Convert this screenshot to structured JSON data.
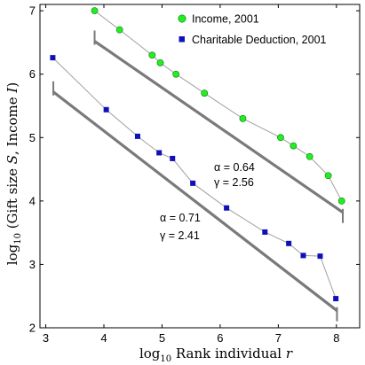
{
  "chart_data": {
    "type": "scatter",
    "xlabel_prefix": "log",
    "xlabel_sub": "10",
    "xlabel_rest": " Rank individual ",
    "xlabel_var": "r",
    "ylabel_prefix": "log",
    "ylabel_sub": "10",
    "ylabel_rest_1": " (Gift size ",
    "ylabel_var_1": "S",
    "ylabel_rest_2": ", Income ",
    "ylabel_var_2": "I",
    "ylabel_rest_3": ")",
    "xlim": [
      2.9,
      8.4
    ],
    "ylim": [
      2,
      7.1
    ],
    "x_ticks": [
      3,
      4,
      5,
      6,
      7,
      8
    ],
    "y_ticks": [
      2,
      3,
      4,
      5,
      6,
      7
    ],
    "legend_position": "top-right",
    "series": [
      {
        "name": "Income, 2001",
        "marker": "circle",
        "marker_color": "#22ee22",
        "x": [
          3.84,
          4.27,
          4.83,
          4.97,
          5.24,
          5.73,
          6.39,
          7.04,
          7.26,
          7.54,
          7.86,
          8.09
        ],
        "y": [
          7.0,
          6.7,
          6.3,
          6.18,
          6.0,
          5.7,
          5.3,
          5.0,
          4.87,
          4.7,
          4.4,
          4.0
        ]
      },
      {
        "name": "Charitable Deduction, 2001",
        "marker": "square",
        "marker_color": "#1010bb",
        "x": [
          3.12,
          4.04,
          4.58,
          4.95,
          5.18,
          5.53,
          6.11,
          6.77,
          7.18,
          7.43,
          7.72,
          7.99
        ],
        "y": [
          6.26,
          5.44,
          5.02,
          4.76,
          4.67,
          4.28,
          3.89,
          3.51,
          3.33,
          3.14,
          3.13,
          2.46
        ]
      }
    ],
    "fit_lines": [
      {
        "x": [
          3.84,
          8.11
        ],
        "y": [
          6.52,
          3.82
        ]
      },
      {
        "x": [
          3.13,
          8.01
        ],
        "y": [
          5.72,
          2.27
        ]
      }
    ],
    "annotations": [
      {
        "alpha": "α = 0.64",
        "gamma": "γ = 2.56",
        "x": 6.5,
        "y": 4.6
      },
      {
        "alpha": "α = 0.71",
        "gamma": "γ = 2.41",
        "x": 4.7,
        "y": 3.55
      }
    ],
    "colors": {
      "connector": "#a0a0a0",
      "fit": "#7a7a7a",
      "axes": "#000000"
    }
  }
}
